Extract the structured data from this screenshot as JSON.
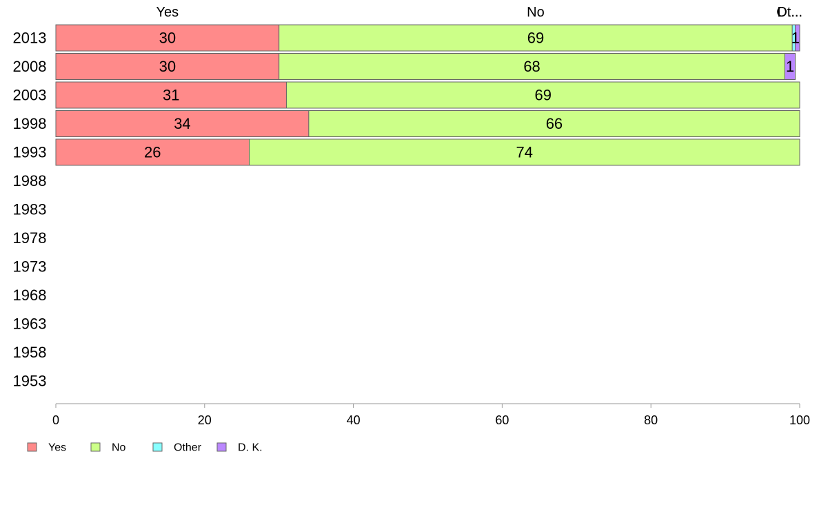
{
  "chart_data": {
    "type": "bar",
    "orientation": "horizontal",
    "stacked": true,
    "categories": [
      "2013",
      "2008",
      "2003",
      "1998",
      "1993",
      "1988",
      "1983",
      "1978",
      "1973",
      "1968",
      "1963",
      "1958",
      "1953"
    ],
    "series": [
      {
        "name": "Yes",
        "color": "#ff8a8a",
        "values": [
          30,
          30,
          31,
          34,
          26,
          null,
          null,
          null,
          null,
          null,
          null,
          null,
          null
        ]
      },
      {
        "name": "No",
        "color": "#ccff88",
        "values": [
          69,
          68,
          69,
          66,
          74,
          null,
          null,
          null,
          null,
          null,
          null,
          null,
          null
        ]
      },
      {
        "name": "Other",
        "color": "#88ffff",
        "values": [
          0.4,
          0,
          0,
          0,
          0,
          null,
          null,
          null,
          null,
          null,
          null,
          null,
          null
        ]
      },
      {
        "name": "D. K.",
        "color": "#bb88ff",
        "values": [
          0.6,
          1.4,
          0,
          0,
          0,
          null,
          null,
          null,
          null,
          null,
          null,
          null,
          null
        ]
      }
    ],
    "data_labels": [
      [
        "30",
        "30",
        "31",
        "34",
        "26",
        "",
        "",
        "",
        "",
        "",
        "",
        "",
        ""
      ],
      [
        "69",
        "68",
        "69",
        "66",
        "74",
        "",
        "",
        "",
        "",
        "",
        "",
        "",
        ""
      ],
      [
        "",
        "",
        "",
        "",
        "",
        "",
        "",
        "",
        "",
        "",
        "",
        "",
        ""
      ],
      [
        "1",
        "1",
        "",
        "",
        "",
        "",
        "",
        "",
        "",
        "",
        "",
        "",
        ""
      ]
    ],
    "column_headers": [
      "Yes",
      "No",
      "Ot...",
      "D...."
    ],
    "xlim": [
      0,
      100
    ],
    "x_ticks": [
      0,
      20,
      40,
      60,
      80,
      100
    ],
    "title": "",
    "xlabel": "",
    "ylabel": "",
    "grid": false,
    "legend": {
      "position": "bottom-left",
      "entries": [
        "Yes",
        "No",
        "Other",
        "D. K."
      ]
    },
    "colors": {
      "bar_outline": "#666666",
      "axis": "#999999"
    }
  }
}
